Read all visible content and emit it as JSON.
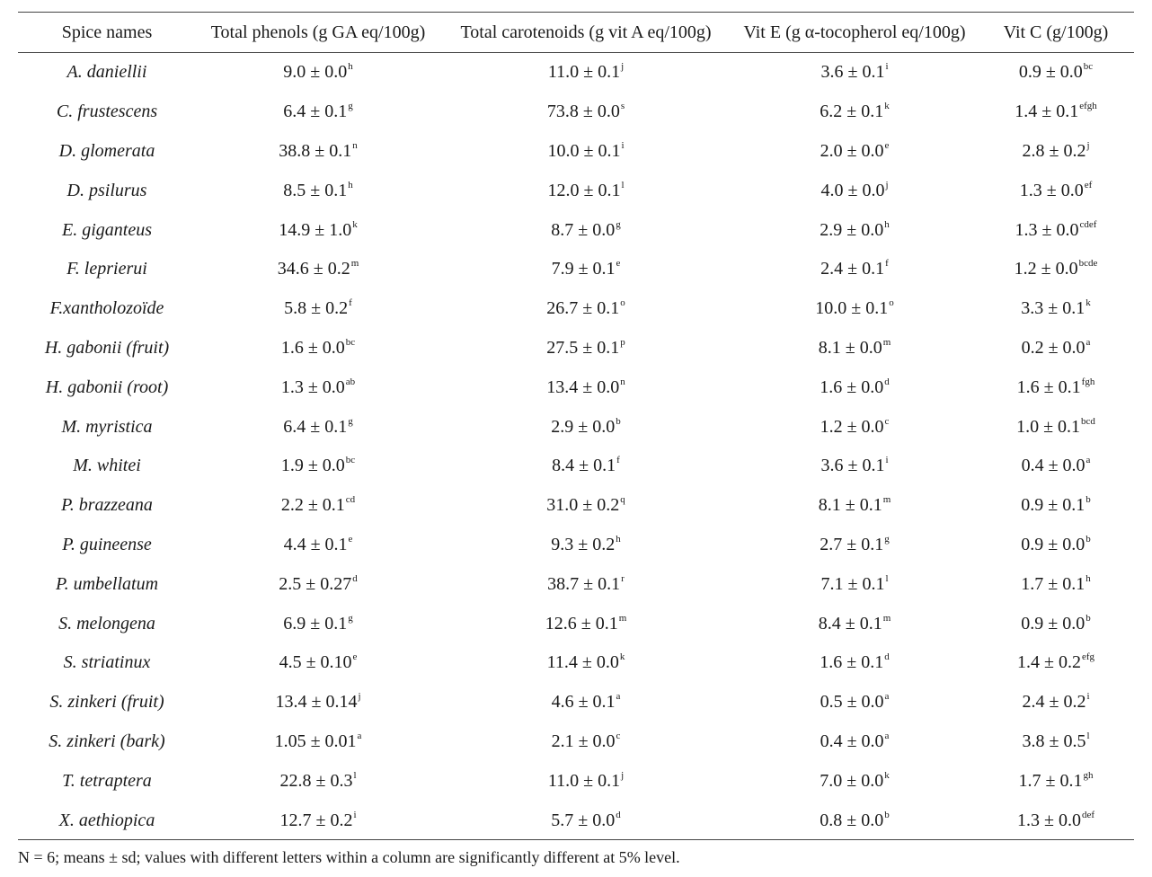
{
  "table": {
    "headers": [
      "Spice names",
      "Total phenols (g GA eq/100g)",
      "Total carotenoids (g vit A eq/100g)",
      "Vit E (g α-tocopherol eq/100g)",
      "Vit C (g/100g)"
    ],
    "rows": [
      {
        "name": "A. daniellii",
        "cells": [
          {
            "v": "9.0 ± 0.0",
            "s": "h"
          },
          {
            "v": "11.0 ± 0.1",
            "s": "j"
          },
          {
            "v": "3.6 ± 0.1",
            "s": "i"
          },
          {
            "v": "0.9 ± 0.0",
            "s": "bc"
          }
        ]
      },
      {
        "name": "C. frustescens",
        "cells": [
          {
            "v": "6.4 ± 0.1",
            "s": "g"
          },
          {
            "v": "73.8 ± 0.0",
            "s": "s"
          },
          {
            "v": "6.2 ± 0.1",
            "s": "k"
          },
          {
            "v": "1.4 ± 0.1",
            "s": "efgh"
          }
        ]
      },
      {
        "name": "D. glomerata",
        "cells": [
          {
            "v": "38.8 ± 0.1",
            "s": "n"
          },
          {
            "v": "10.0 ± 0.1",
            "s": "i"
          },
          {
            "v": "2.0 ± 0.0",
            "s": "e"
          },
          {
            "v": "2.8 ± 0.2",
            "s": "j"
          }
        ]
      },
      {
        "name": "D. psilurus",
        "cells": [
          {
            "v": "8.5 ± 0.1",
            "s": "h"
          },
          {
            "v": "12.0 ± 0.1",
            "s": "l"
          },
          {
            "v": "4.0 ± 0.0",
            "s": "j"
          },
          {
            "v": "1.3 ± 0.0",
            "s": "ef"
          }
        ]
      },
      {
        "name": "E. giganteus",
        "cells": [
          {
            "v": "14.9 ± 1.0",
            "s": "k"
          },
          {
            "v": "8.7 ± 0.0",
            "s": "g"
          },
          {
            "v": "2.9 ± 0.0",
            "s": "h"
          },
          {
            "v": "1.3 ± 0.0",
            "s": "cdef"
          }
        ]
      },
      {
        "name": "F. leprierui",
        "cells": [
          {
            "v": "34.6 ± 0.2",
            "s": "m"
          },
          {
            "v": "7.9 ± 0.1",
            "s": "e"
          },
          {
            "v": "2.4 ± 0.1",
            "s": "f"
          },
          {
            "v": "1.2 ± 0.0",
            "s": "bcde"
          }
        ]
      },
      {
        "name": "F.xantholozoïde",
        "cells": [
          {
            "v": "5.8 ± 0.2",
            "s": "f"
          },
          {
            "v": "26.7 ± 0.1",
            "s": "o"
          },
          {
            "v": "10.0 ± 0.1",
            "s": "o"
          },
          {
            "v": "3.3 ± 0.1",
            "s": "k"
          }
        ]
      },
      {
        "name": "H. gabonii (fruit)",
        "cells": [
          {
            "v": "1.6 ± 0.0",
            "s": "bc"
          },
          {
            "v": "27.5 ± 0.1",
            "s": "p"
          },
          {
            "v": "8.1 ± 0.0",
            "s": "m"
          },
          {
            "v": "0.2 ± 0.0",
            "s": "a"
          }
        ]
      },
      {
        "name": "H. gabonii (root)",
        "cells": [
          {
            "v": "1.3 ± 0.0",
            "s": "ab"
          },
          {
            "v": "13.4 ± 0.0",
            "s": "n"
          },
          {
            "v": "1.6 ± 0.0",
            "s": "d"
          },
          {
            "v": "1.6 ± 0.1",
            "s": "fgh"
          }
        ]
      },
      {
        "name": "M. myristica",
        "cells": [
          {
            "v": "6.4 ± 0.1",
            "s": "g"
          },
          {
            "v": "2.9 ± 0.0",
            "s": "b"
          },
          {
            "v": "1.2 ± 0.0",
            "s": "c"
          },
          {
            "v": "1.0 ± 0.1",
            "s": "bcd"
          }
        ]
      },
      {
        "name": "M. whitei",
        "cells": [
          {
            "v": "1.9 ± 0.0",
            "s": "bc"
          },
          {
            "v": "8.4 ± 0.1",
            "s": "f"
          },
          {
            "v": "3.6 ± 0.1",
            "s": "i"
          },
          {
            "v": "0.4 ± 0.0",
            "s": "a"
          }
        ]
      },
      {
        "name": "P. brazzeana",
        "cells": [
          {
            "v": "2.2 ± 0.1",
            "s": "cd"
          },
          {
            "v": "31.0 ± 0.2",
            "s": "q"
          },
          {
            "v": "8.1 ± 0.1",
            "s": "m"
          },
          {
            "v": "0.9 ± 0.1",
            "s": "b"
          }
        ]
      },
      {
        "name": "P. guineense",
        "cells": [
          {
            "v": "4.4 ± 0.1",
            "s": "e"
          },
          {
            "v": "9.3 ± 0.2",
            "s": "h"
          },
          {
            "v": "2.7 ± 0.1",
            "s": "g"
          },
          {
            "v": "0.9 ± 0.0",
            "s": "b"
          }
        ]
      },
      {
        "name": "P. umbellatum",
        "cells": [
          {
            "v": "2.5 ± 0.27",
            "s": "d"
          },
          {
            "v": "38.7 ± 0.1",
            "s": "r"
          },
          {
            "v": "7.1 ± 0.1",
            "s": "l"
          },
          {
            "v": "1.7 ± 0.1",
            "s": "h"
          }
        ]
      },
      {
        "name": "S. melongena",
        "cells": [
          {
            "v": "6.9 ± 0.1",
            "s": "g"
          },
          {
            "v": "12.6 ± 0.1",
            "s": "m"
          },
          {
            "v": "8.4 ± 0.1",
            "s": "m"
          },
          {
            "v": "0.9 ± 0.0",
            "s": "b"
          }
        ]
      },
      {
        "name": "S. striatinux",
        "cells": [
          {
            "v": "4.5 ± 0.10",
            "s": "e"
          },
          {
            "v": "11.4 ± 0.0",
            "s": "k"
          },
          {
            "v": "1.6 ± 0.1",
            "s": "d"
          },
          {
            "v": "1.4 ± 0.2",
            "s": "efg"
          }
        ]
      },
      {
        "name": "S. zinkeri (fruit)",
        "cells": [
          {
            "v": "13.4 ± 0.14",
            "s": "j"
          },
          {
            "v": "4.6 ± 0.1",
            "s": "a"
          },
          {
            "v": "0.5 ± 0.0",
            "s": "a"
          },
          {
            "v": "2.4 ± 0.2",
            "s": "i"
          }
        ]
      },
      {
        "name": "S. zinkeri (bark)",
        "cells": [
          {
            "v": "1.05 ± 0.01",
            "s": "a"
          },
          {
            "v": "2.1 ± 0.0",
            "s": "c"
          },
          {
            "v": "0.4 ± 0.0",
            "s": "a"
          },
          {
            "v": "3.8 ± 0.5",
            "s": "l"
          }
        ]
      },
      {
        "name": "T. tetraptera",
        "cells": [
          {
            "v": "22.8 ± 0.3",
            "s": "l"
          },
          {
            "v": "11.0 ± 0.1",
            "s": "j"
          },
          {
            "v": "7.0 ± 0.0",
            "s": "k"
          },
          {
            "v": "1.7 ± 0.1",
            "s": "gh"
          }
        ]
      },
      {
        "name": "X. aethiopica",
        "cells": [
          {
            "v": "12.7 ± 0.2",
            "s": "i"
          },
          {
            "v": "5.7 ± 0.0",
            "s": "d"
          },
          {
            "v": "0.8 ± 0.0",
            "s": "b"
          },
          {
            "v": "1.3 ± 0.0",
            "s": "def"
          }
        ]
      }
    ]
  },
  "footnote": "N = 6; means ± sd; values with different letters within a column are significantly different at 5% level."
}
